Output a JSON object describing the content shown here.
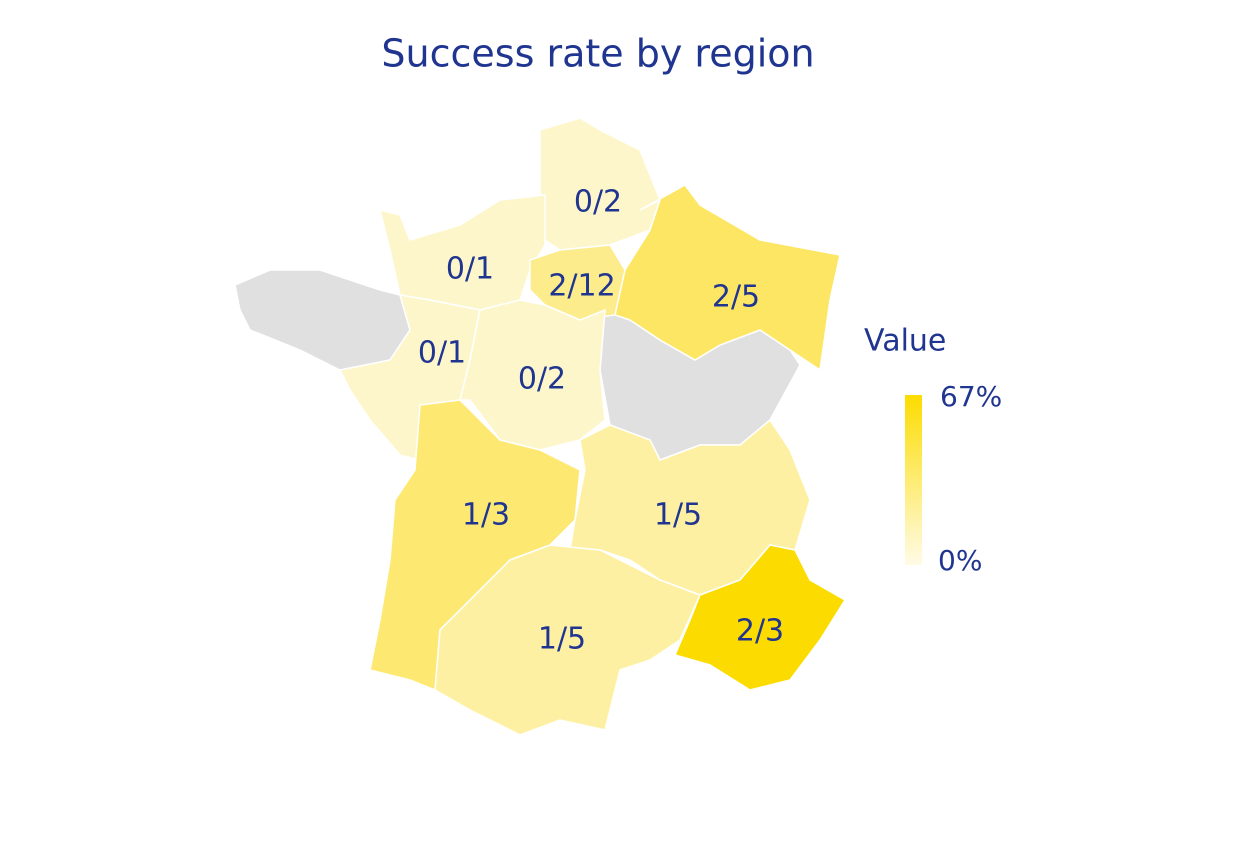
{
  "title": "Success rate by region",
  "regions": [
    {
      "label": "0/2",
      "color": "#fef6cb"
    },
    {
      "label": "0/1",
      "color": "#fef6cb"
    },
    {
      "label": "2/12",
      "color": "#fdec8c"
    },
    {
      "label": "2/5",
      "color": "#fde664"
    },
    {
      "label": "0/1",
      "color": "#fef6cb"
    },
    {
      "label": "0/2",
      "color": "#fef6cb"
    },
    {
      "label": "1/3",
      "color": "#fde972"
    },
    {
      "label": "1/5",
      "color": "#fef0a2"
    },
    {
      "label": "1/5",
      "color": "#fef0a2"
    },
    {
      "label": "2/3",
      "color": "#fcdc00"
    }
  ],
  "legend": {
    "title": "Value",
    "max_label": "67%",
    "min_label": "0%",
    "max_color": "#fcdc00",
    "min_color": "#fffbe6"
  }
}
